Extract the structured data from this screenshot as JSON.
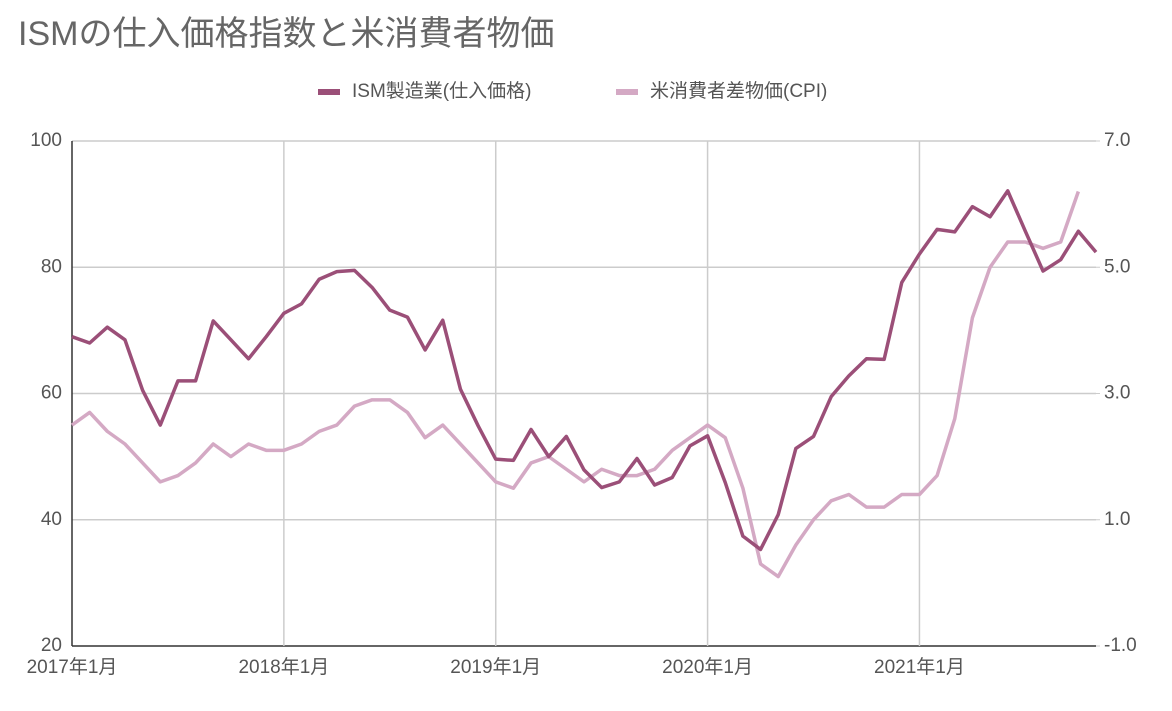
{
  "chart_data": {
    "type": "line",
    "title": "ISMの仕入価格指数と米消費者物価",
    "categories": [
      "2017年1月",
      null,
      null,
      null,
      null,
      null,
      null,
      null,
      null,
      null,
      null,
      null,
      "2018年1月",
      null,
      null,
      null,
      null,
      null,
      null,
      null,
      null,
      null,
      null,
      null,
      "2019年1月",
      null,
      null,
      null,
      null,
      null,
      null,
      null,
      null,
      null,
      null,
      null,
      "2020年1月",
      null,
      null,
      null,
      null,
      null,
      null,
      null,
      null,
      null,
      null,
      null,
      "2021年1月",
      null,
      null,
      null,
      null,
      null,
      null,
      null,
      null,
      null,
      null
    ],
    "series": [
      {
        "name": "ISM製造業(仕入価格)",
        "color": "#9b4f78",
        "axis": "y",
        "values": [
          69,
          68,
          70.5,
          68.5,
          60.5,
          55,
          62,
          62,
          71.5,
          68.5,
          65.5,
          69,
          72.7,
          74.2,
          78.1,
          79.3,
          79.5,
          76.8,
          73.2,
          72.1,
          66.9,
          71.6,
          60.7,
          54.9,
          49.6,
          49.4,
          54.3,
          50.0,
          53.2,
          47.9,
          45.1,
          46.0,
          49.7,
          45.5,
          46.7,
          51.7,
          53.3,
          45.9,
          37.4,
          35.3,
          40.8,
          51.3,
          53.2,
          59.5,
          62.8,
          65.5,
          65.4,
          77.6,
          82.1,
          86.0,
          85.6,
          89.6,
          88.0,
          92.1,
          85.7,
          79.4,
          81.2,
          85.7,
          82.4
        ]
      },
      {
        "name": "米消費者差物価(CPI)",
        "color": "#d4a9c4",
        "axis": "y2",
        "values": [
          2.5,
          2.7,
          2.4,
          2.2,
          1.9,
          1.6,
          1.7,
          1.9,
          2.2,
          2.0,
          2.2,
          2.1,
          2.1,
          2.2,
          2.4,
          2.5,
          2.8,
          2.9,
          2.9,
          2.7,
          2.3,
          2.5,
          2.2,
          1.9,
          1.6,
          1.5,
          1.9,
          2.0,
          1.8,
          1.6,
          1.8,
          1.7,
          1.7,
          1.8,
          2.1,
          2.3,
          2.5,
          2.3,
          1.5,
          0.3,
          0.1,
          0.6,
          1.0,
          1.3,
          1.4,
          1.2,
          1.2,
          1.4,
          1.4,
          1.7,
          2.6,
          4.2,
          5.0,
          5.4,
          5.4,
          5.3,
          5.4,
          6.2,
          null
        ]
      }
    ],
    "ylim": [
      20,
      100
    ],
    "yticks": [
      20,
      40,
      60,
      80,
      100
    ],
    "y2lim": [
      -1,
      7
    ],
    "y2ticks": [
      {
        "value": -1,
        "label": "-1.0"
      },
      {
        "value": 1,
        "label": "1.0"
      },
      {
        "value": 3,
        "label": "3.0"
      },
      {
        "value": 5,
        "label": "5.0"
      },
      {
        "value": 7,
        "label": "7.0"
      }
    ],
    "grid": true,
    "legend": "top"
  }
}
